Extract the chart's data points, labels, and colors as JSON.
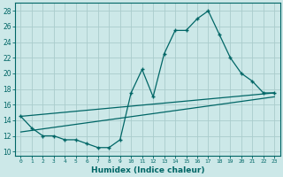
{
  "xlabel": "Humidex (Indice chaleur)",
  "background_color": "#cce8e8",
  "grid_color": "#aacccc",
  "line_color": "#006666",
  "xlim": [
    -0.5,
    23.5
  ],
  "ylim": [
    9.5,
    29.0
  ],
  "xtick_labels": [
    "0",
    "1",
    "2",
    "3",
    "4",
    "5",
    "6",
    "7",
    "8",
    "9",
    "10",
    "11",
    "12",
    "13",
    "14",
    "15",
    "16",
    "17",
    "18",
    "19",
    "20",
    "21",
    "22",
    "23"
  ],
  "xtick_positions": [
    0,
    1,
    2,
    3,
    4,
    5,
    6,
    7,
    8,
    9,
    10,
    11,
    12,
    13,
    14,
    15,
    16,
    17,
    18,
    19,
    20,
    21,
    22,
    23
  ],
  "ytick_labels": [
    "10",
    "12",
    "14",
    "16",
    "18",
    "20",
    "22",
    "24",
    "26",
    "28"
  ],
  "ytick_positions": [
    10,
    12,
    14,
    16,
    18,
    20,
    22,
    24,
    26,
    28
  ],
  "line1_x": [
    0,
    1,
    2,
    3,
    4,
    5,
    6,
    7,
    8,
    9,
    10,
    11,
    12,
    13,
    14,
    15,
    16,
    17,
    18,
    19,
    20,
    21,
    22,
    23
  ],
  "line1_y": [
    14.5,
    13.0,
    12.0,
    12.0,
    11.5,
    11.5,
    11.0,
    10.5,
    10.5,
    11.5,
    17.5,
    20.5,
    17.0,
    22.5,
    25.5,
    25.5,
    27.0,
    28.0,
    25.0,
    22.0,
    20.0,
    19.0,
    17.5,
    17.5
  ],
  "line2_x": [
    0,
    23
  ],
  "line2_y": [
    12.5,
    17.0
  ],
  "line3_x": [
    0,
    23
  ],
  "line3_y": [
    14.5,
    17.5
  ]
}
